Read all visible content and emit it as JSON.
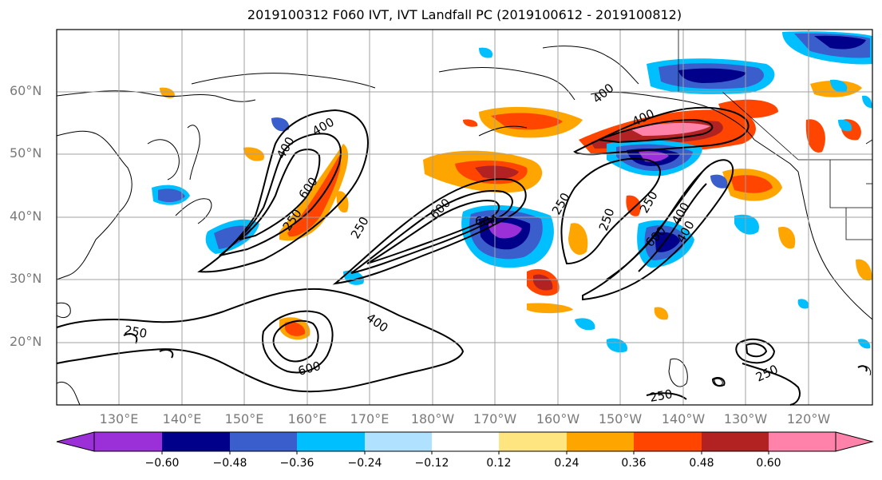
{
  "title": "2019100312 F060 IVT, IVT Landfall PC (2019100612 - 2019100812)",
  "lat_labels": [
    "60°N",
    "50°N",
    "40°N",
    "30°N",
    "20°N"
  ],
  "lon_labels": [
    "130°E",
    "140°E",
    "150°E",
    "160°E",
    "170°E",
    "180°W",
    "170°W",
    "160°W",
    "150°W",
    "140°W",
    "130°W",
    "120°W"
  ],
  "contour_labels": [
    "400",
    "400",
    "600",
    "250",
    "600",
    "250",
    "600",
    "400",
    "250",
    "400",
    "250",
    "400",
    "600",
    "400",
    "250",
    "250",
    "600",
    "250",
    "400",
    "250"
  ],
  "colorbar": {
    "ticks": [
      "−0.60",
      "−0.48",
      "−0.36",
      "−0.24",
      "−0.12",
      "0.12",
      "0.24",
      "0.36",
      "0.48",
      "0.60"
    ],
    "colors": [
      "#9b30d9",
      "#00008b",
      "#3a5fcd",
      "#00bfff",
      "#b0e2ff",
      "#ffffff",
      "#ffe57f",
      "#ffa500",
      "#ff4500",
      "#b22222",
      "#ff82ab"
    ]
  }
}
